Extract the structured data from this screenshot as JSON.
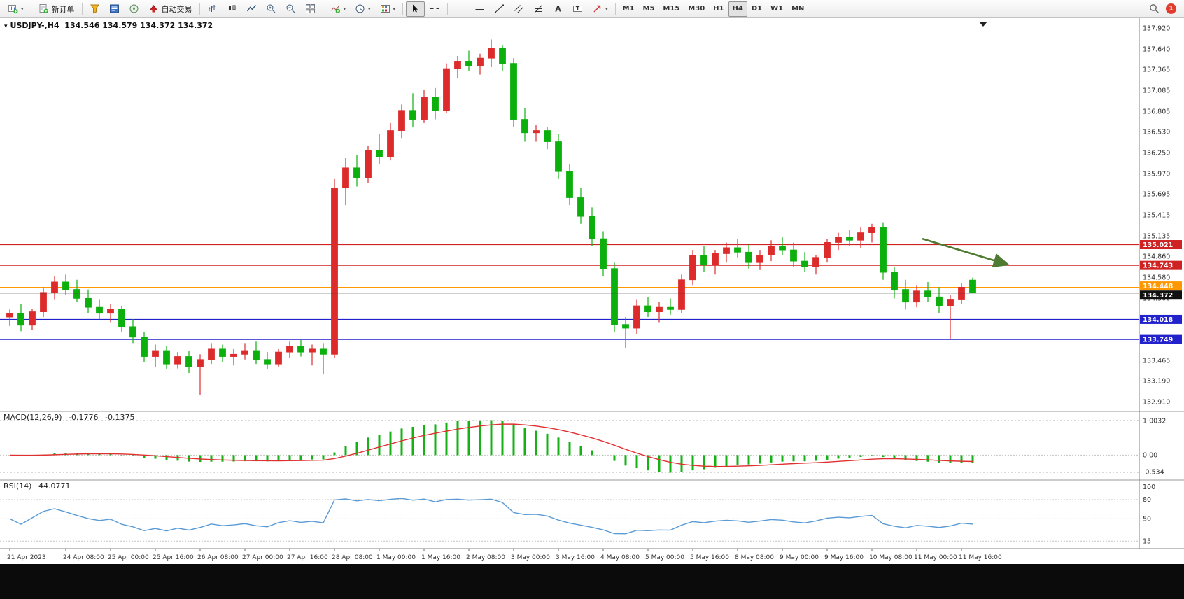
{
  "colors": {
    "up": "#dd2b2b",
    "down": "#0cb00c",
    "macd_hist": "#14b214",
    "macd_signal": "#e03030",
    "rsi_line": "#5b9bd5",
    "line_red": "#cf2222",
    "line_blue": "#2222cc",
    "line_orange": "#ff9800",
    "current_price_line": "#3a3a3a",
    "current_price_badge": "#111111",
    "arrow": "#4e7b31"
  },
  "toolbar": {
    "new_order": "新订单",
    "algo_trading": "自动交易",
    "timeframes": [
      "M1",
      "M5",
      "M15",
      "M30",
      "H1",
      "H4",
      "D1",
      "W1",
      "MN"
    ],
    "active_timeframe": "H4",
    "notification_badge": "1"
  },
  "chart": {
    "symbol_period": "USDJPY-,H4",
    "ohlc": "134.546 134.579 134.372 134.372"
  },
  "chart_data": {
    "type": "candlestick",
    "symbol": "USDJPY-",
    "timeframe": "H4",
    "ohlc_display": {
      "open": "134.546",
      "high": "134.579",
      "low": "134.372",
      "close": "134.372"
    },
    "price_axis": {
      "max": 138.0,
      "min": 132.84,
      "labels": [
        "137.920",
        "137.640",
        "137.365",
        "137.085",
        "136.805",
        "136.530",
        "136.250",
        "135.970",
        "135.695",
        "135.415",
        "135.135",
        "134.860",
        "134.580",
        "134.300",
        "133.465",
        "133.190",
        "132.910"
      ]
    },
    "hlines": [
      {
        "value": 135.021,
        "label": "135.021",
        "color": "line_red"
      },
      {
        "value": 134.743,
        "label": "134.743",
        "color": "line_red"
      },
      {
        "value": 134.448,
        "label": "134.448",
        "color": "line_orange"
      },
      {
        "value": 134.018,
        "label": "134.018",
        "color": "line_blue"
      },
      {
        "value": 133.749,
        "label": "133.749",
        "color": "line_blue"
      }
    ],
    "current_price": {
      "value": 134.372,
      "label": "134.372"
    },
    "trend_arrow": {
      "from_i": 81.5,
      "from_p": 135.1,
      "to_i": 89,
      "to_p": 134.76
    },
    "candles": [
      [
        134.05,
        134.15,
        133.93,
        134.1
      ],
      [
        134.1,
        134.22,
        133.86,
        133.94
      ],
      [
        133.94,
        134.16,
        133.88,
        134.12
      ],
      [
        134.12,
        134.45,
        134.05,
        134.38
      ],
      [
        134.38,
        134.6,
        134.28,
        134.52
      ],
      [
        134.52,
        134.62,
        134.35,
        134.42
      ],
      [
        134.42,
        134.55,
        134.25,
        134.3
      ],
      [
        134.3,
        134.42,
        134.1,
        134.18
      ],
      [
        134.18,
        134.28,
        134.02,
        134.1
      ],
      [
        134.1,
        134.22,
        133.98,
        134.15
      ],
      [
        134.15,
        134.2,
        133.85,
        133.92
      ],
      [
        133.92,
        134.02,
        133.7,
        133.78
      ],
      [
        133.78,
        133.85,
        133.45,
        133.52
      ],
      [
        133.52,
        133.68,
        133.38,
        133.6
      ],
      [
        133.6,
        133.66,
        133.35,
        133.42
      ],
      [
        133.42,
        133.58,
        133.36,
        133.52
      ],
      [
        133.52,
        133.6,
        133.3,
        133.38
      ],
      [
        133.38,
        133.55,
        133.01,
        133.48
      ],
      [
        133.48,
        133.7,
        133.42,
        133.62
      ],
      [
        133.62,
        133.68,
        133.45,
        133.52
      ],
      [
        133.52,
        133.62,
        133.4,
        133.55
      ],
      [
        133.55,
        133.7,
        133.48,
        133.6
      ],
      [
        133.6,
        133.72,
        133.42,
        133.48
      ],
      [
        133.48,
        133.58,
        133.35,
        133.42
      ],
      [
        133.42,
        133.62,
        133.38,
        133.58
      ],
      [
        133.58,
        133.72,
        133.5,
        133.66
      ],
      [
        133.66,
        133.74,
        133.52,
        133.58
      ],
      [
        133.58,
        133.68,
        133.4,
        133.62
      ],
      [
        133.62,
        133.7,
        133.28,
        133.55
      ],
      [
        133.55,
        135.9,
        133.5,
        135.78
      ],
      [
        135.78,
        136.18,
        135.55,
        136.05
      ],
      [
        136.05,
        136.22,
        135.8,
        135.92
      ],
      [
        135.92,
        136.35,
        135.85,
        136.28
      ],
      [
        136.28,
        136.5,
        136.1,
        136.2
      ],
      [
        136.2,
        136.65,
        136.15,
        136.55
      ],
      [
        136.55,
        136.9,
        136.45,
        136.82
      ],
      [
        136.82,
        137.05,
        136.6,
        136.7
      ],
      [
        136.7,
        137.1,
        136.65,
        137.0
      ],
      [
        137.0,
        137.12,
        136.7,
        136.82
      ],
      [
        136.82,
        137.45,
        136.78,
        137.38
      ],
      [
        137.38,
        137.55,
        137.25,
        137.48
      ],
      [
        137.48,
        137.62,
        137.35,
        137.42
      ],
      [
        137.42,
        137.58,
        137.3,
        137.52
      ],
      [
        137.52,
        137.77,
        137.4,
        137.65
      ],
      [
        137.65,
        137.7,
        137.35,
        137.45
      ],
      [
        137.45,
        137.52,
        136.6,
        136.7
      ],
      [
        136.7,
        136.85,
        136.4,
        136.52
      ],
      [
        136.52,
        136.62,
        136.4,
        136.55
      ],
      [
        136.55,
        136.6,
        136.3,
        136.4
      ],
      [
        136.4,
        136.5,
        135.9,
        136.0
      ],
      [
        136.0,
        136.1,
        135.55,
        135.65
      ],
      [
        135.65,
        135.78,
        135.3,
        135.4
      ],
      [
        135.4,
        135.52,
        135.0,
        135.1
      ],
      [
        135.1,
        135.2,
        134.6,
        134.7
      ],
      [
        134.7,
        134.78,
        133.85,
        133.95
      ],
      [
        133.95,
        134.05,
        133.63,
        133.9
      ],
      [
        133.9,
        134.28,
        133.82,
        134.2
      ],
      [
        134.2,
        134.32,
        134.05,
        134.12
      ],
      [
        134.12,
        134.25,
        133.98,
        134.18
      ],
      [
        134.18,
        134.3,
        134.08,
        134.15
      ],
      [
        134.15,
        134.62,
        134.1,
        134.55
      ],
      [
        134.55,
        134.95,
        134.48,
        134.88
      ],
      [
        134.88,
        135.0,
        134.65,
        134.75
      ],
      [
        134.75,
        134.95,
        134.62,
        134.9
      ],
      [
        134.9,
        135.05,
        134.78,
        134.98
      ],
      [
        134.98,
        135.1,
        134.85,
        134.92
      ],
      [
        134.92,
        135.02,
        134.7,
        134.78
      ],
      [
        134.78,
        134.95,
        134.68,
        134.88
      ],
      [
        134.88,
        135.08,
        134.8,
        135.0
      ],
      [
        135.0,
        135.12,
        134.88,
        134.95
      ],
      [
        134.95,
        135.05,
        134.72,
        134.8
      ],
      [
        134.8,
        134.92,
        134.65,
        134.72
      ],
      [
        134.72,
        134.88,
        134.62,
        134.85
      ],
      [
        134.85,
        135.1,
        134.78,
        135.05
      ],
      [
        135.05,
        135.18,
        134.95,
        135.12
      ],
      [
        135.12,
        135.22,
        135.0,
        135.08
      ],
      [
        135.08,
        135.25,
        134.98,
        135.18
      ],
      [
        135.18,
        135.3,
        135.05,
        135.25
      ],
      [
        135.25,
        135.32,
        134.55,
        134.65
      ],
      [
        134.65,
        134.72,
        134.3,
        134.42
      ],
      [
        134.42,
        134.55,
        134.15,
        134.25
      ],
      [
        134.25,
        134.48,
        134.18,
        134.4
      ],
      [
        134.4,
        134.52,
        134.25,
        134.32
      ],
      [
        134.32,
        134.45,
        134.1,
        134.2
      ],
      [
        134.2,
        134.35,
        133.76,
        134.28
      ],
      [
        134.28,
        134.5,
        134.22,
        134.45
      ],
      [
        134.546,
        134.579,
        134.372,
        134.372
      ]
    ],
    "time_labels": [
      {
        "i": 0,
        "t": "21 Apr 2023"
      },
      {
        "i": 5,
        "t": "24 Apr 08:00"
      },
      {
        "i": 9,
        "t": "25 Apr 00:00"
      },
      {
        "i": 13,
        "t": "25 Apr 16:00"
      },
      {
        "i": 17,
        "t": "26 Apr 08:00"
      },
      {
        "i": 21,
        "t": "27 Apr 00:00"
      },
      {
        "i": 25,
        "t": "27 Apr 16:00"
      },
      {
        "i": 29,
        "t": "28 Apr 08:00"
      },
      {
        "i": 33,
        "t": "1 May 00:00"
      },
      {
        "i": 37,
        "t": "1 May 16:00"
      },
      {
        "i": 41,
        "t": "2 May 08:00"
      },
      {
        "i": 45,
        "t": "3 May 00:00"
      },
      {
        "i": 49,
        "t": "3 May 16:00"
      },
      {
        "i": 53,
        "t": "4 May 08:00"
      },
      {
        "i": 57,
        "t": "5 May 00:00"
      },
      {
        "i": 61,
        "t": "5 May 16:00"
      },
      {
        "i": 65,
        "t": "8 May 08:00"
      },
      {
        "i": 69,
        "t": "9 May 00:00"
      },
      {
        "i": 73,
        "t": "9 May 16:00"
      },
      {
        "i": 77,
        "t": "10 May 08:00"
      },
      {
        "i": 81,
        "t": "11 May 00:00"
      },
      {
        "i": 85,
        "t": "11 May 16:00"
      }
    ],
    "indicators": {
      "macd": {
        "title": "MACD(12,26,9)",
        "value_main": "-0.1776",
        "value_signal": "-0.1375",
        "params": [
          12,
          26,
          9
        ],
        "axis_labels": {
          "top": "1.0032",
          "zero": "0.00",
          "bottom": "-0.534"
        }
      },
      "rsi": {
        "title": "RSI(14)",
        "value": "44.0771",
        "period": 14,
        "axis_labels": [
          "100",
          "80",
          "50",
          "15"
        ],
        "levels": [
          80,
          50,
          15
        ]
      }
    }
  }
}
